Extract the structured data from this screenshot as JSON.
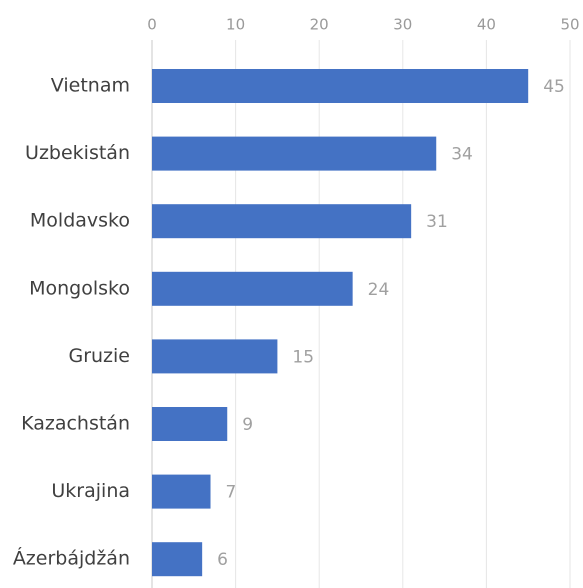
{
  "chart_data": {
    "type": "bar",
    "categories": [
      "Vietnam",
      "Uzbekistán",
      "Moldavsko",
      "Mongolsko",
      "Gruzie",
      "Kazachstán",
      "Ukrajina",
      "Ázerbájdžán"
    ],
    "values": [
      45,
      34,
      31,
      24,
      15,
      9,
      7,
      6
    ],
    "color": "#4472c4",
    "xlim": [
      0,
      50
    ],
    "xticks": [
      0,
      10,
      20,
      30,
      40,
      50
    ],
    "grid": true
  }
}
